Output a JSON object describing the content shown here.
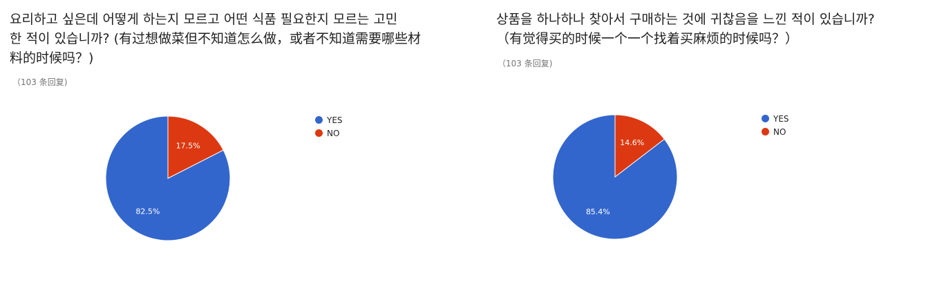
{
  "chart_data": [
    {
      "type": "pie",
      "title": "요리하고 싶은데 어떻게 하는지 모르고 어떤 식품 필요한지 모르는 고민\n한 적이 있습니까? (有过想做菜但不知道怎么做，或者不知道需要哪些材\n料的时候吗？)",
      "responses": "（103 条回复)",
      "categories": [
        "YES",
        "NO"
      ],
      "values": [
        82.5,
        17.5
      ],
      "labels": [
        "82.5%",
        "17.5%"
      ],
      "colors": [
        "#3366cc",
        "#dc3912"
      ],
      "legend_position": "right"
    },
    {
      "type": "pie",
      "title": "상품을 하나하나 찾아서 구매하는 것에 귀찮음을 느낀 적이 있습니까?\n（有觉得买的时候一个一个找着买麻烦的时候吗？）",
      "responses": "（103 条回复)",
      "categories": [
        "YES",
        "NO"
      ],
      "values": [
        85.4,
        14.6
      ],
      "labels": [
        "85.4%",
        "14.6%"
      ],
      "colors": [
        "#3366cc",
        "#dc3912"
      ],
      "legend_position": "right"
    }
  ]
}
